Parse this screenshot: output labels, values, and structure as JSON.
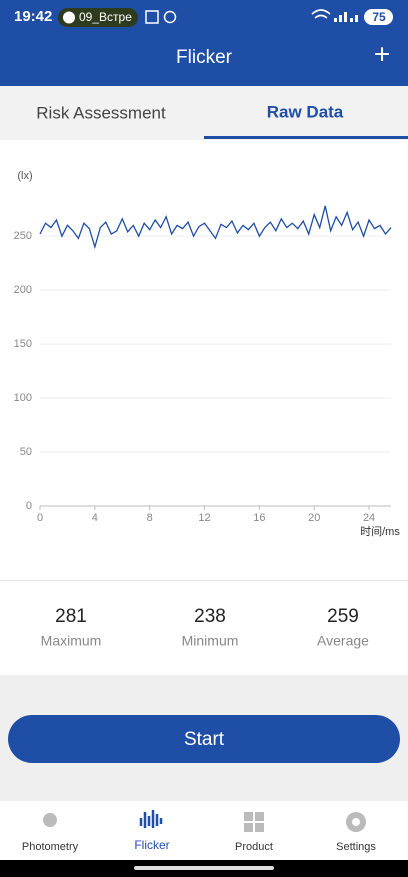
{
  "status_bar": {
    "time": "19:42",
    "pill": "09_Встре",
    "battery": "75"
  },
  "header": {
    "title": "Flicker",
    "action": "+"
  },
  "tabs": [
    "Risk Assessment",
    "Raw Data"
  ],
  "chart_data": {
    "type": "line",
    "y_unit": "(lx)",
    "x_label": "时间/ms",
    "x": [
      0,
      0.4,
      0.8,
      1.2,
      1.6,
      2,
      2.4,
      2.8,
      3.2,
      3.6,
      4,
      4.4,
      4.8,
      5.2,
      5.6,
      6,
      6.4,
      6.8,
      7.2,
      7.6,
      8,
      8.4,
      8.8,
      9.2,
      9.6,
      10,
      10.4,
      10.8,
      11.2,
      11.6,
      12,
      12.4,
      12.8,
      13.2,
      13.6,
      14,
      14.4,
      14.8,
      15.2,
      15.6,
      16,
      16.4,
      16.8,
      17.2,
      17.6,
      18,
      18.4,
      18.8,
      19.2,
      19.6,
      20,
      20.4,
      20.8,
      21.2,
      21.6,
      22,
      22.4,
      22.8,
      23.2,
      23.6,
      24,
      24.4,
      24.8,
      25.2,
      25.6
    ],
    "series": [
      {
        "color": "#1f4ea6",
        "values": [
          252,
          262,
          258,
          265,
          250,
          260,
          255,
          248,
          262,
          257,
          240,
          258,
          263,
          252,
          255,
          266,
          254,
          260,
          250,
          262,
          256,
          265,
          258,
          268,
          252,
          260,
          257,
          263,
          250,
          259,
          262,
          255,
          248,
          261,
          258,
          264,
          253,
          260,
          256,
          262,
          250,
          258,
          263,
          255,
          266,
          258,
          262,
          257,
          264,
          252,
          270,
          258,
          278,
          255,
          268,
          260,
          272,
          256,
          263,
          250,
          265,
          257,
          260,
          252,
          258
        ]
      }
    ],
    "xlim": [
      0,
      25.6
    ],
    "ylim": [
      0,
      290
    ],
    "xticks": [
      0,
      4,
      8,
      12,
      16,
      20,
      24
    ],
    "yticks": [
      0,
      50,
      100,
      150,
      200,
      250
    ],
    "grid": true
  },
  "stats": [
    {
      "value": "281",
      "label": "Maximum"
    },
    {
      "value": "238",
      "label": "Minimum"
    },
    {
      "value": "259",
      "label": "Average"
    }
  ],
  "button": "Start",
  "nav": [
    "Photometry",
    "Flicker",
    "Product",
    "Settings"
  ]
}
